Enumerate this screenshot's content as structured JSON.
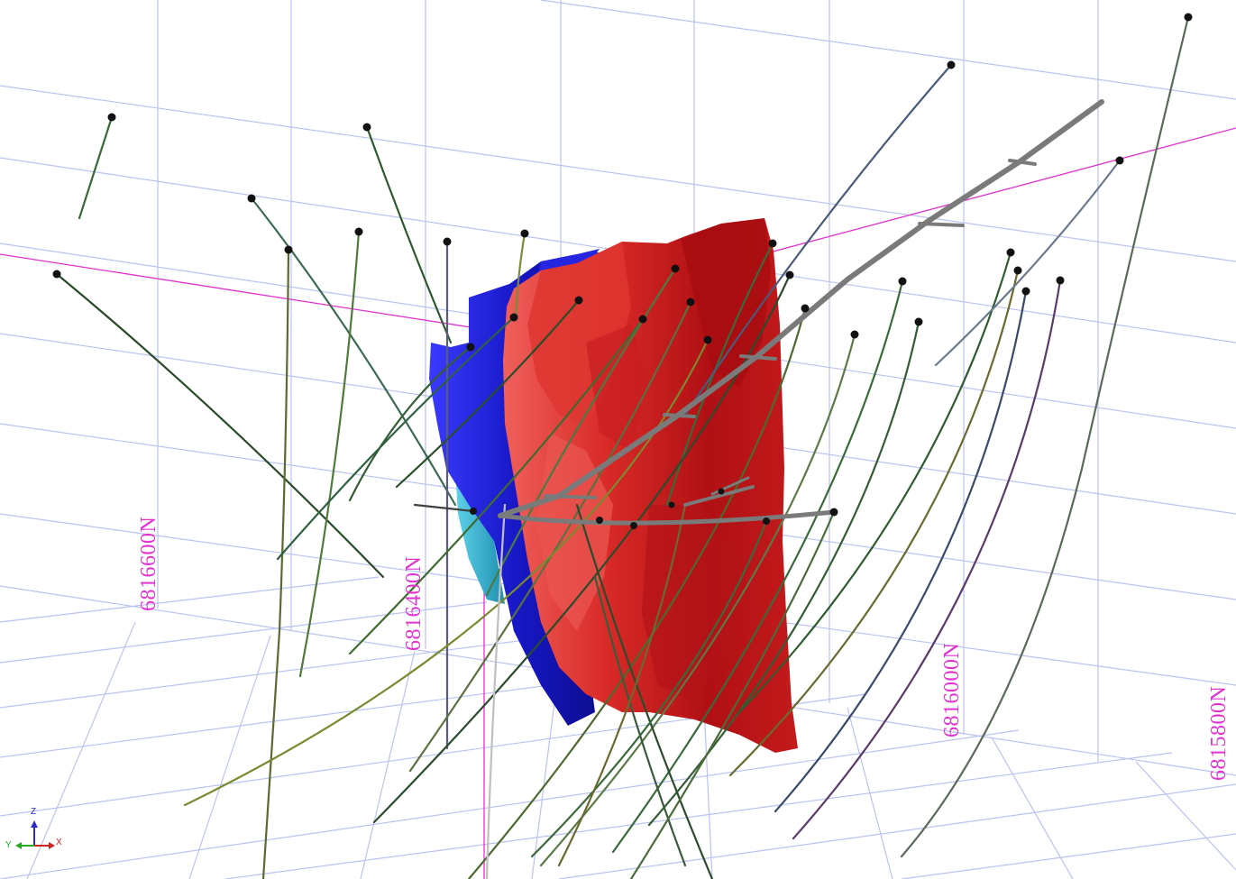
{
  "viewer": {
    "labels": {
      "n1": "6816600N",
      "n2": "6816400N",
      "n3": "6816000N",
      "n4": "6815800N"
    },
    "axes": {
      "x": "X",
      "y": "Y",
      "z": "Z"
    },
    "colors": {
      "grid": "#b9c3ef",
      "reference_line": "#e033d0",
      "ore_body_red": "#c8161a",
      "ore_body_blue": "#1a1ab8",
      "ore_body_cyan": "#2aa6c6",
      "drive": "#7a7a7a",
      "collar": "#111111"
    }
  }
}
